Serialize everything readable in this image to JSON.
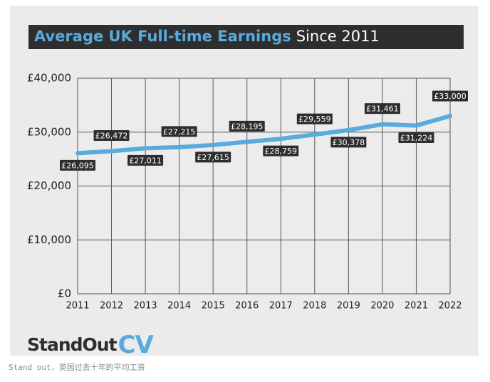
{
  "chart_data": {
    "type": "line",
    "title": "Average UK Full-time Earnings",
    "subtitle": "Since 2011",
    "categories": [
      "2011",
      "2012",
      "2013",
      "2014",
      "2015",
      "2016",
      "2017",
      "2018",
      "2019",
      "2020",
      "2021",
      "2022"
    ],
    "series": [
      {
        "name": "Average UK Full-time Earnings",
        "color": "#5aaadd",
        "values": [
          26095,
          26472,
          27011,
          27215,
          27615,
          28195,
          28759,
          29559,
          30378,
          31461,
          31224,
          33000
        ],
        "value_labels": [
          "£26,095",
          "£26,472",
          "£27,011",
          "£27,215",
          "£27,615",
          "£28,195",
          "£28,759",
          "£29,559",
          "£30,378",
          "£31,461",
          "£31,224",
          "£33,000"
        ]
      }
    ],
    "ylim": [
      0,
      40000
    ],
    "yticks": [
      {
        "value": 0,
        "label": "£0"
      },
      {
        "value": 10000,
        "label": "£10,000"
      },
      {
        "value": 20000,
        "label": "£20,000"
      },
      {
        "value": 30000,
        "label": "£30,000"
      },
      {
        "value": 40000,
        "label": "£40,000"
      }
    ],
    "grid": true
  },
  "logo": {
    "brand": "StandOut",
    "accent": "CV"
  },
  "caption": "Stand out，英国过去十年的平均工资"
}
